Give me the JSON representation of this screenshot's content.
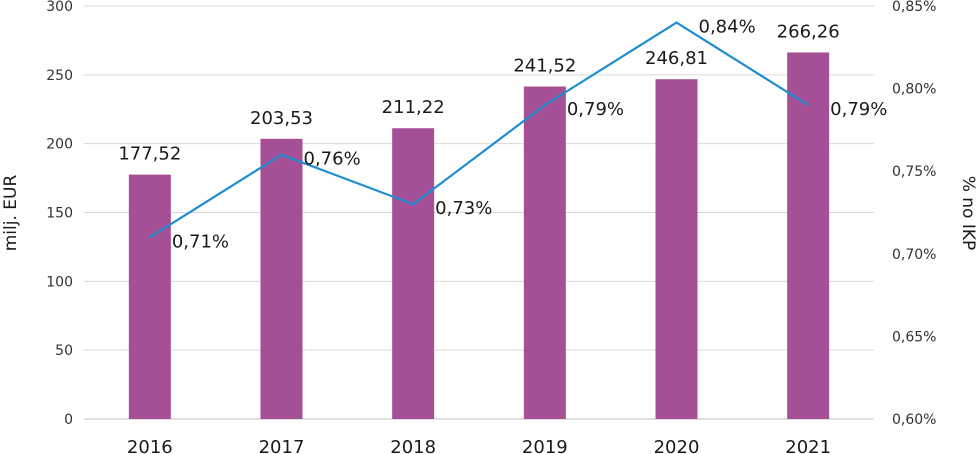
{
  "chart_data": {
    "type": "bar",
    "categories": [
      "2016",
      "2017",
      "2018",
      "2019",
      "2020",
      "2021"
    ],
    "series": [
      {
        "type": "bar",
        "axis": "left",
        "values": [
          177.52,
          203.53,
          211.22,
          241.52,
          246.81,
          266.26
        ],
        "labels": [
          "177,52",
          "203,53",
          "211,22",
          "241,52",
          "246,81",
          "266,26"
        ],
        "color": "#a44f96"
      },
      {
        "type": "line",
        "axis": "right",
        "values": [
          0.71,
          0.76,
          0.73,
          0.79,
          0.84,
          0.79
        ],
        "labels": [
          "0,71%",
          "0,76%",
          "0,73%",
          "0,79%",
          "0,84%",
          "0,79%"
        ],
        "color": "#1f8dd0"
      }
    ],
    "ylabel": "milj. EUR",
    "y2label": "% no IKP",
    "ylim": [
      0,
      300
    ],
    "y2lim": [
      0.6,
      0.85
    ],
    "yticks": [
      "0",
      "50",
      "100",
      "150",
      "200",
      "250",
      "300"
    ],
    "y2ticks": [
      "0,60%",
      "0,65%",
      "0,70%",
      "0,75%",
      "0,80%",
      "0,85%"
    ],
    "grid": true,
    "legend": "none"
  }
}
